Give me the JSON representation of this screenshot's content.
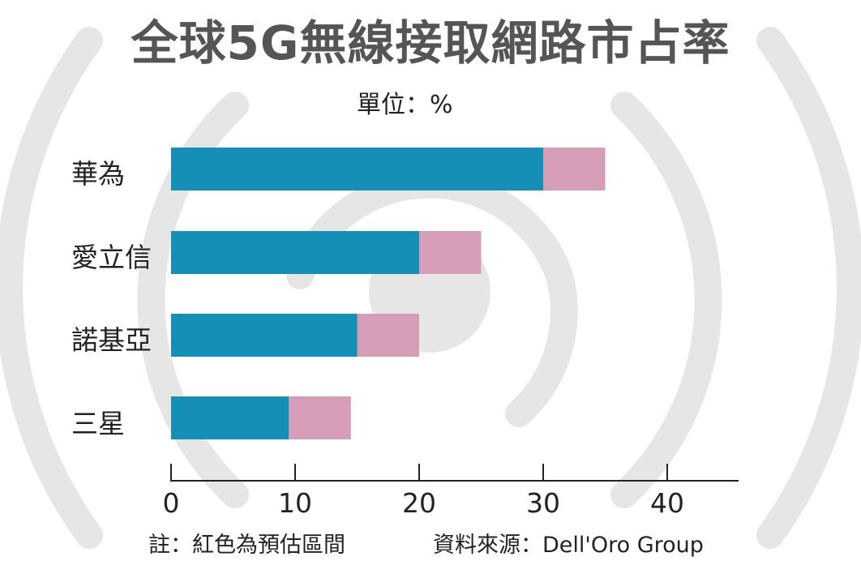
{
  "chart_data": {
    "type": "bar",
    "orientation": "horizontal",
    "stacked": true,
    "title": "全球5G無線接取網路市占率",
    "unit_label": "單位：%",
    "categories": [
      "華為",
      "愛立信",
      "諾基亞",
      "三星"
    ],
    "series": [
      {
        "color": "#168fb6",
        "values": [
          30,
          20,
          15,
          9.5
        ]
      },
      {
        "color": "#d59db8",
        "values": [
          5,
          5,
          5,
          5
        ]
      }
    ],
    "xlim": [
      0,
      46
    ],
    "xticks": [
      "0",
      "10",
      "20",
      "30",
      "40"
    ],
    "grid": false,
    "legend": "none"
  },
  "footer": {
    "note": "註：紅色為預估區間",
    "source": "資料來源：Dell'Oro Group"
  },
  "colors": {
    "title": "#555555",
    "background_arcs": "#e6e6e6"
  }
}
